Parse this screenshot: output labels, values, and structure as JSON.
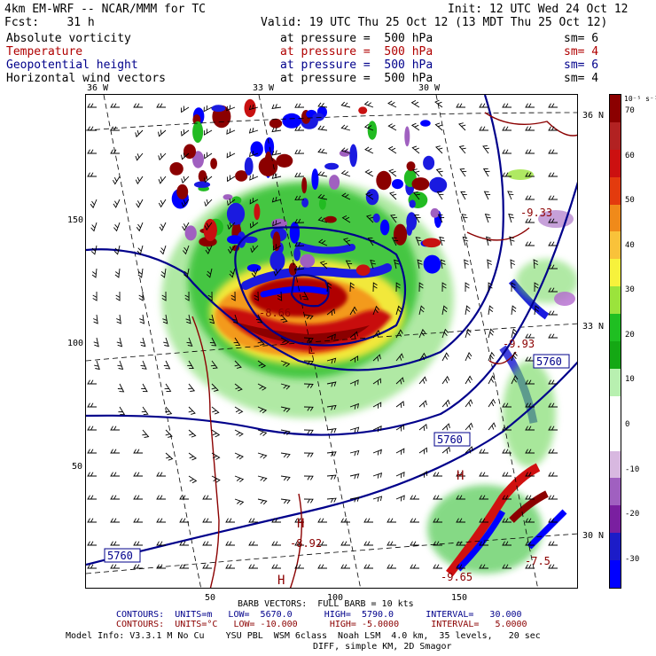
{
  "header": {
    "line1_left": "4km EM-WRF -- NCAR/MMM for TC",
    "line1_right": "Init: 12 UTC Wed 24 Oct 12",
    "line2_left": "Fcst:    31 h",
    "line2_right": "Valid: 19 UTC Thu 25 Oct 12 (13 MDT Thu 25 Oct 12)"
  },
  "fields": [
    {
      "name": "Absolute vorticity",
      "level": "at pressure =  500 hPa",
      "sm": "sm= 6",
      "color": "#000000"
    },
    {
      "name": "Temperature",
      "level": "at pressure =  500 hPa",
      "sm": "sm= 4",
      "color": "#b00000"
    },
    {
      "name": "Geopotential height",
      "level": "at pressure =  500 hPa",
      "sm": "sm= 6",
      "color": "#00008b"
    },
    {
      "name": "Horizontal wind vectors",
      "level": "at pressure =  500 hPa",
      "sm": "sm= 4",
      "color": "#000000"
    }
  ],
  "map": {
    "lon_labels": [
      "36 W",
      "33 W",
      "30 W"
    ],
    "lat_labels": [
      "36 N",
      "33 N",
      "30 N"
    ],
    "y_ticks": [
      "150",
      "100",
      "50"
    ],
    "x_ticks": [
      "50",
      "100",
      "150"
    ],
    "height_contour_labels": [
      "5760",
      "5760",
      "5760"
    ],
    "temperature_labels": [
      "-9.33",
      "-9.93",
      "-8.92",
      "-7.5",
      "-9.65",
      "-8.66"
    ],
    "center_labels": [
      "H",
      "H",
      "H",
      "L"
    ],
    "colors": {
      "geopotential": "#00008b",
      "temperature": "#8b0000",
      "wind": "#000000",
      "gridlines": "#000000"
    }
  },
  "colorbar": {
    "unit": "10⁻⁵ s⁻¹",
    "labels": [
      "70",
      "60",
      "50",
      "40",
      "30",
      "20",
      "10",
      "0",
      "-10",
      "-20",
      "-30"
    ],
    "colors": [
      "#8b0000",
      "#b22222",
      "#cc1010",
      "#e33b0e",
      "#f08a1a",
      "#f9c23a",
      "#f7f23c",
      "#9be33c",
      "#1fbf22",
      "#14a814",
      "#b8f0b0",
      "#ffffff",
      "#ffffff",
      "#d8b8e0",
      "#a060c0",
      "#7a1fa0",
      "#1c1cc8",
      "#0000ff"
    ]
  },
  "footer": {
    "barb": "BARB VECTORS:  FULL BARB = 10 kts",
    "contours_height": "CONTOURS:  UNITS=m   LOW=  5670.0      HIGH=  5790.0      INTERVAL=   30.000",
    "contours_temp": "CONTOURS:  UNITS=°C   LOW= -10.000      HIGH= -5.0000      INTERVAL=   5.0000",
    "model_info": "Model Info: V3.3.1 M No Cu    YSU PBL  WSM 6class  Noah LSM  4.0 km,  35 levels,   20 sec",
    "model_info2": "DIFF, simple KM, 2D Smagor"
  }
}
